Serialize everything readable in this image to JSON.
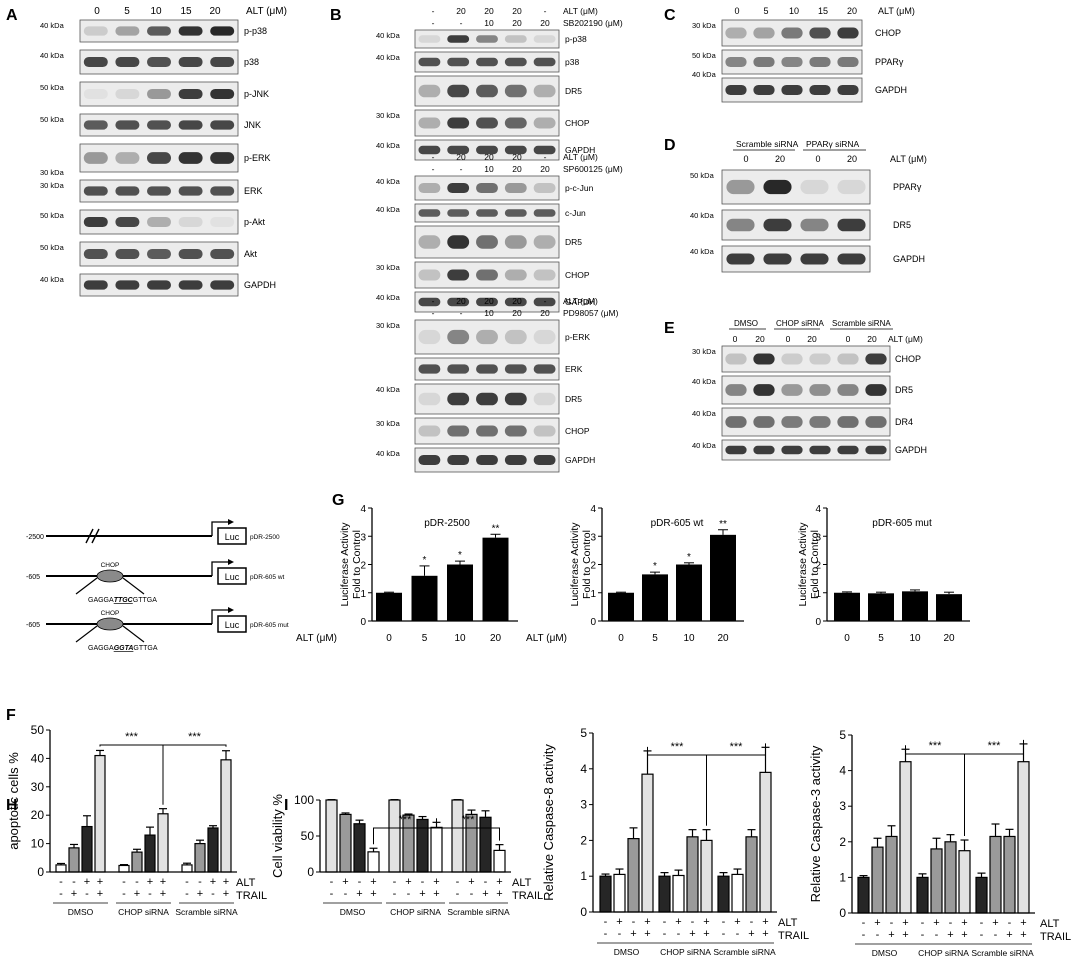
{
  "panels": {
    "A": {
      "letter": "A",
      "header": [
        "0",
        "5",
        "10",
        "15",
        "20",
        "ALT (μM)"
      ],
      "rows": [
        {
          "kda": "40 kDa",
          "label": "p-p38",
          "bands": [
            0.15,
            0.35,
            0.7,
            0.9,
            0.95
          ],
          "h": 22
        },
        {
          "kda": "40 kDa",
          "label": "p38",
          "bands": [
            0.8,
            0.8,
            0.75,
            0.8,
            0.8
          ],
          "h": 24
        },
        {
          "kda": "50 kDa",
          "label": "p-JNK",
          "bands": [
            0.05,
            0.1,
            0.4,
            0.85,
            0.9
          ],
          "h": 24
        },
        {
          "kda": "50 kDa",
          "label": "JNK",
          "bands": [
            0.7,
            0.75,
            0.75,
            0.8,
            0.8
          ],
          "h": 22
        },
        {
          "kda": "",
          "label": "p-ERK",
          "bands": [
            0.4,
            0.3,
            0.8,
            0.9,
            0.9
          ],
          "h": 28,
          "kda2": "30 kDa"
        },
        {
          "kda": "30 kDa",
          "label": "ERK",
          "bands": [
            0.75,
            0.75,
            0.75,
            0.75,
            0.75
          ],
          "h": 22
        },
        {
          "kda": "50 kDa",
          "label": "p-Akt",
          "bands": [
            0.85,
            0.8,
            0.3,
            0.1,
            0.05
          ],
          "h": 24
        },
        {
          "kda": "50 kDa",
          "label": "Akt",
          "bands": [
            0.75,
            0.75,
            0.7,
            0.75,
            0.75
          ],
          "h": 24
        },
        {
          "kda": "40 kDa",
          "label": "GAPDH",
          "bands": [
            0.85,
            0.85,
            0.85,
            0.85,
            0.85
          ],
          "h": 22
        }
      ]
    },
    "B": {
      "letter": "B",
      "groups": [
        {
          "alt_row": [
            "-",
            "20",
            "20",
            "20",
            "-"
          ],
          "inh_row": [
            "-",
            "-",
            "10",
            "20",
            "20"
          ],
          "alt_label": "ALT (μM)",
          "inh_label": "SB202190 (μM)",
          "rows": [
            {
              "kda": "40 kDa",
              "label": "p-p38",
              "bands": [
                0.1,
                0.85,
                0.5,
                0.2,
                0.1
              ],
              "h": 18
            },
            {
              "kda": "40 kDa",
              "label": "p38",
              "bands": [
                0.75,
                0.75,
                0.75,
                0.75,
                0.75
              ],
              "h": 20
            },
            {
              "kda": "",
              "label": "DR5",
              "bands": [
                0.3,
                0.8,
                0.7,
                0.6,
                0.3
              ],
              "h": 30
            },
            {
              "kda": "30 kDa",
              "label": "CHOP",
              "bands": [
                0.3,
                0.85,
                0.75,
                0.65,
                0.3
              ],
              "h": 26
            },
            {
              "kda": "40 kDa",
              "label": "GAPDH",
              "bands": [
                0.8,
                0.8,
                0.8,
                0.8,
                0.8
              ],
              "h": 20
            }
          ]
        },
        {
          "alt_row": [
            "-",
            "20",
            "20",
            "20",
            "-"
          ],
          "inh_row": [
            "-",
            "-",
            "10",
            "20",
            "20"
          ],
          "alt_label": "ALT (μM)",
          "inh_label": "SP600125 (μM)",
          "rows": [
            {
              "kda": "40 kDa",
              "label": "p-c-Jun",
              "bands": [
                0.3,
                0.85,
                0.6,
                0.4,
                0.2
              ],
              "h": 24
            },
            {
              "kda": "40 kDa",
              "label": "c-Jun",
              "bands": [
                0.7,
                0.7,
                0.7,
                0.7,
                0.7
              ],
              "h": 18
            },
            {
              "kda": "",
              "label": "DR5",
              "bands": [
                0.3,
                0.9,
                0.6,
                0.4,
                0.3
              ],
              "h": 32
            },
            {
              "kda": "30 kDa",
              "label": "CHOP",
              "bands": [
                0.2,
                0.85,
                0.6,
                0.3,
                0.2
              ],
              "h": 26
            },
            {
              "kda": "40 kDa",
              "label": "GAPDH",
              "bands": [
                0.8,
                0.8,
                0.8,
                0.8,
                0.8
              ],
              "h": 20
            }
          ]
        },
        {
          "alt_row": [
            "-",
            "20",
            "20",
            "20",
            "-"
          ],
          "inh_row": [
            "-",
            "-",
            "10",
            "20",
            "20"
          ],
          "alt_label": "ALT  (μM)",
          "inh_label": "PD98057  (μM)",
          "rows": [
            {
              "kda": "30 kDa",
              "label": "p-ERK",
              "bands": [
                0.1,
                0.5,
                0.3,
                0.2,
                0.1
              ],
              "h": 34
            },
            {
              "kda": "",
              "label": "ERK",
              "bands": [
                0.75,
                0.75,
                0.75,
                0.75,
                0.75
              ],
              "h": 22
            },
            {
              "kda": "40 kDa",
              "label": "DR5",
              "bands": [
                0.1,
                0.85,
                0.85,
                0.85,
                0.1
              ],
              "h": 30
            },
            {
              "kda": "30 kDa",
              "label": "CHOP",
              "bands": [
                0.2,
                0.6,
                0.6,
                0.6,
                0.2
              ],
              "h": 26
            },
            {
              "kda": "40 kDa",
              "label": "GAPDH",
              "bands": [
                0.85,
                0.85,
                0.85,
                0.85,
                0.85
              ],
              "h": 24
            }
          ]
        }
      ]
    },
    "C": {
      "letter": "C",
      "header": [
        "0",
        "5",
        "10",
        "15",
        "20",
        "ALT (μM)"
      ],
      "rows": [
        {
          "kda": "30 kDa",
          "label": "CHOP",
          "bands": [
            0.3,
            0.35,
            0.55,
            0.75,
            0.85
          ],
          "h": 26
        },
        {
          "kda": "50 kDa",
          "label": "PPARγ",
          "bands": [
            0.5,
            0.55,
            0.5,
            0.55,
            0.55
          ],
          "h": 24,
          "kda2": "40 kDa"
        },
        {
          "kda": "",
          "label": "GAPDH",
          "bands": [
            0.85,
            0.85,
            0.85,
            0.85,
            0.85
          ],
          "h": 24
        }
      ]
    },
    "D": {
      "letter": "D",
      "groups": [
        "Scramble siRNA",
        "PPARγ siRNA"
      ],
      "header": [
        "0",
        "20",
        "0",
        "20",
        "ALT (μM)"
      ],
      "rows": [
        {
          "kda": "50 kDa",
          "label": "PPARγ",
          "bands": [
            0.4,
            0.95,
            0.1,
            0.1
          ],
          "h": 34
        },
        {
          "kda": "40 kDa",
          "label": "DR5",
          "bands": [
            0.5,
            0.85,
            0.5,
            0.85
          ],
          "h": 30
        },
        {
          "kda": "40 kDa",
          "label": "GAPDH",
          "bands": [
            0.85,
            0.85,
            0.85,
            0.85
          ],
          "h": 26
        }
      ]
    },
    "E": {
      "letter": "E",
      "groups": [
        "DMSO",
        "CHOP siRNA",
        "Scramble siRNA"
      ],
      "header": [
        "0",
        "20",
        "0",
        "20",
        "0",
        "20",
        "ALT (μM)"
      ],
      "rows": [
        {
          "kda": "30 kDa",
          "label": "CHOP",
          "bands": [
            0.2,
            0.9,
            0.15,
            0.15,
            0.2,
            0.85
          ],
          "h": 26
        },
        {
          "kda": "40 kDa",
          "label": "DR5",
          "bands": [
            0.5,
            0.9,
            0.4,
            0.45,
            0.5,
            0.9
          ],
          "h": 28
        },
        {
          "kda": "40 kDa",
          "label": "DR4",
          "bands": [
            0.6,
            0.6,
            0.55,
            0.55,
            0.6,
            0.6
          ],
          "h": 28
        },
        {
          "kda": "40 kDa",
          "label": "GAPDH",
          "bands": [
            0.85,
            0.85,
            0.85,
            0.85,
            0.85,
            0.85
          ],
          "h": 20
        }
      ]
    },
    "F": {
      "letter": "F",
      "constructs": [
        {
          "start": "-2500",
          "name": "pDR-2500",
          "luc": "Luc"
        },
        {
          "start": "-605",
          "name": "pDR-605 wt",
          "luc": "Luc",
          "site": "CHOP",
          "seq_pre": "GAGGA",
          "seq_core": "TTGC",
          "seq_post": "GTTGA"
        },
        {
          "start": "-605",
          "name": "pDR-605 mut",
          "luc": "Luc",
          "site": "CHOP",
          "seq_pre": "GAGGA",
          "seq_core": "GGTA",
          "seq_post": "GTTGA"
        }
      ]
    },
    "G": {
      "letter": "G"
    },
    "H": {
      "letter": "H"
    },
    "I": {
      "letter": "I"
    }
  },
  "chart_data": [
    {
      "id": "G1",
      "type": "bar",
      "title": "pDR-2500",
      "ylabel": "Luciferase Activity\nFold to Control",
      "xlabel": "ALT (μM)",
      "categories": [
        "0",
        "5",
        "10",
        "20"
      ],
      "values": [
        1.0,
        1.6,
        2.0,
        2.95
      ],
      "errors": [
        0.02,
        0.35,
        0.12,
        0.12
      ],
      "sig": [
        "",
        "*",
        "*",
        "**"
      ],
      "ylim": [
        0,
        4
      ],
      "yticks": [
        "0",
        "1",
        "2",
        "3",
        "4"
      ]
    },
    {
      "id": "G2",
      "type": "bar",
      "title": "pDR-605 wt",
      "ylabel": "Luciferase Activity\nFold to Control",
      "xlabel": "ALT (μM)",
      "categories": [
        "0",
        "5",
        "10",
        "20"
      ],
      "values": [
        1.0,
        1.65,
        2.0,
        3.05
      ],
      "errors": [
        0.02,
        0.08,
        0.06,
        0.18
      ],
      "sig": [
        "",
        "*",
        "*",
        "**"
      ],
      "ylim": [
        0,
        4
      ],
      "yticks": [
        "0",
        "1",
        "2",
        "3",
        "4"
      ]
    },
    {
      "id": "G3",
      "type": "bar",
      "title": "pDR-605 mut",
      "ylabel": "Luciferase Activity\nFold to Control",
      "xlabel": "",
      "categories": [
        "0",
        "5",
        "10",
        "20"
      ],
      "values": [
        1.0,
        0.98,
        1.05,
        0.95
      ],
      "errors": [
        0.03,
        0.04,
        0.05,
        0.07
      ],
      "sig": [
        "",
        "",
        "",
        ""
      ],
      "ylim": [
        0,
        4
      ],
      "yticks": [
        "0",
        "1",
        "2",
        "3",
        "4"
      ]
    },
    {
      "id": "H",
      "type": "bar",
      "ylabel": "apoptotic cells %",
      "ylim": [
        0,
        50
      ],
      "yticks": [
        "0",
        "10",
        "20",
        "30",
        "40",
        "50"
      ],
      "groups": [
        "DMSO",
        "CHOP siRNA",
        "Scramble siRNA"
      ],
      "values": [
        [
          2.5,
          8.5,
          16,
          41
        ],
        [
          2.3,
          7.0,
          13,
          20.5
        ],
        [
          2.5,
          10,
          15.5,
          39.5
        ]
      ],
      "errors": [
        [
          0.5,
          1.2,
          3.8,
          1.8
        ],
        [
          0.3,
          1.0,
          2.8,
          1.8
        ],
        [
          0.6,
          1.2,
          0.8,
          3.2
        ]
      ],
      "alt_row": [
        "-",
        "-",
        "+",
        "+"
      ],
      "trail_row": [
        "-",
        "+",
        "-",
        "+"
      ],
      "alt_label": "ALT",
      "trail_label": "TRAIL",
      "sig": [
        "***",
        "***"
      ]
    },
    {
      "id": "I1",
      "type": "bar",
      "ylabel": "Cell viability %",
      "ylim": [
        0,
        100
      ],
      "yticks": [
        "0",
        "50",
        "100"
      ],
      "groups": [
        "DMSO",
        "CHOP siRNA",
        "Scramble siRNA"
      ],
      "values": [
        [
          100,
          80,
          67,
          28
        ],
        [
          100,
          79,
          73,
          62
        ],
        [
          100,
          80,
          76,
          30
        ]
      ],
      "errors": [
        [
          0.5,
          2,
          5,
          5
        ],
        [
          0.5,
          1.5,
          4,
          7
        ],
        [
          0.5,
          6,
          9,
          8
        ]
      ],
      "alt_row": [
        "-",
        "+",
        "-",
        "+"
      ],
      "trail_row": [
        "-",
        "-",
        "+",
        "+"
      ],
      "alt_label": "ALT",
      "trail_label": "TRAIL",
      "sig": [
        "***",
        "***"
      ]
    },
    {
      "id": "I2",
      "type": "bar",
      "ylabel": "Relative Caspase-8 activity",
      "ylim": [
        0,
        5
      ],
      "yticks": [
        "0",
        "1",
        "2",
        "3",
        "4",
        "5"
      ],
      "groups": [
        "DMSO",
        "CHOP siRNA",
        "Scramble siRNA"
      ],
      "values": [
        [
          1.0,
          1.05,
          2.05,
          3.85
        ],
        [
          1.0,
          1.02,
          2.1,
          2.0
        ],
        [
          1.0,
          1.05,
          2.1,
          3.9
        ]
      ],
      "errors": [
        [
          0.06,
          0.15,
          0.3,
          0.65
        ],
        [
          0.1,
          0.15,
          0.2,
          0.3
        ],
        [
          0.1,
          0.15,
          0.2,
          0.7
        ]
      ],
      "alt_row": [
        "-",
        "+",
        "-",
        "+"
      ],
      "trail_row": [
        "-",
        "-",
        "+",
        "+"
      ],
      "alt_label": "ALT",
      "trail_label": "TRAIL",
      "sig": [
        "***",
        "***"
      ]
    },
    {
      "id": "I3",
      "type": "bar",
      "ylabel": "Relative Caspase-3 activity",
      "ylim": [
        0,
        5
      ],
      "yticks": [
        "0",
        "1",
        "2",
        "3",
        "4",
        "5"
      ],
      "groups": [
        "DMSO",
        "CHOP siRNA",
        "Scramble siRNA"
      ],
      "values": [
        [
          1.0,
          1.85,
          2.15,
          4.25
        ],
        [
          1.0,
          1.8,
          2.0,
          1.75
        ],
        [
          1.0,
          2.15,
          2.15,
          4.25
        ]
      ],
      "errors": [
        [
          0.05,
          0.25,
          0.3,
          0.35
        ],
        [
          0.1,
          0.3,
          0.2,
          0.3
        ],
        [
          0.12,
          0.35,
          0.2,
          0.5
        ]
      ],
      "alt_row": [
        "-",
        "+",
        "-",
        "+"
      ],
      "trail_row": [
        "-",
        "-",
        "+",
        "+"
      ],
      "alt_label": "ALT",
      "trail_label": "TRAIL",
      "sig": [
        "***",
        "***"
      ]
    }
  ],
  "colors": {
    "bar_fills": [
      "#ffffff",
      "#9a9a9a",
      "#262626",
      "#e2e2e2"
    ],
    "black": "#000000"
  }
}
